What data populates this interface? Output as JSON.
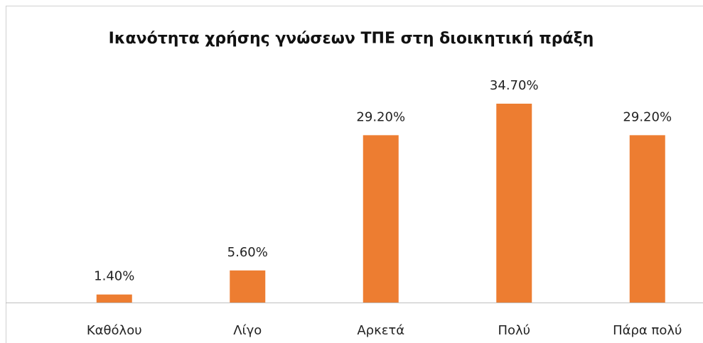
{
  "chart_data": {
    "type": "bar",
    "title": "Ικανότητα χρήσης γνώσεων ΤΠΕ στη διοικητική πράξη",
    "categories": [
      "Καθόλου",
      "Λίγο",
      "Αρκετά",
      "Πολύ",
      "Πάρα πολύ"
    ],
    "values": [
      1.4,
      5.6,
      29.2,
      34.7,
      29.2
    ],
    "value_labels": [
      "1.40%",
      "5.60%",
      "29.20%",
      "34.70%",
      "29.20%"
    ],
    "color": "#ed7d31"
  }
}
